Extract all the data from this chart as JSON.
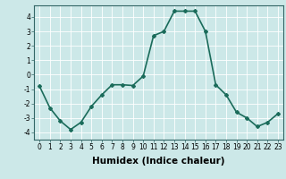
{
  "x": [
    0,
    1,
    2,
    3,
    4,
    5,
    6,
    7,
    8,
    9,
    10,
    11,
    12,
    13,
    14,
    15,
    16,
    17,
    18,
    19,
    20,
    21,
    22,
    23
  ],
  "y": [
    -0.8,
    -2.3,
    -3.2,
    -3.8,
    -3.3,
    -2.2,
    -1.4,
    -0.7,
    -0.7,
    -0.75,
    -0.1,
    2.7,
    3.0,
    4.4,
    4.4,
    4.4,
    3.0,
    -0.7,
    -1.4,
    -2.6,
    -3.0,
    -3.6,
    -3.3,
    -2.7
  ],
  "line_color": "#1a6b5a",
  "marker": "D",
  "marker_size": 2.0,
  "bg_color": "#cce8e8",
  "grid_color": "#ffffff",
  "xlabel": "Humidex (Indice chaleur)",
  "ylim": [
    -4.5,
    4.8
  ],
  "xlim": [
    -0.5,
    23.5
  ],
  "xticks": [
    0,
    1,
    2,
    3,
    4,
    5,
    6,
    7,
    8,
    9,
    10,
    11,
    12,
    13,
    14,
    15,
    16,
    17,
    18,
    19,
    20,
    21,
    22,
    23
  ],
  "yticks": [
    -4,
    -3,
    -2,
    -1,
    0,
    1,
    2,
    3,
    4
  ],
  "tick_fontsize": 5.5,
  "xlabel_fontsize": 7.5,
  "line_width": 1.2
}
